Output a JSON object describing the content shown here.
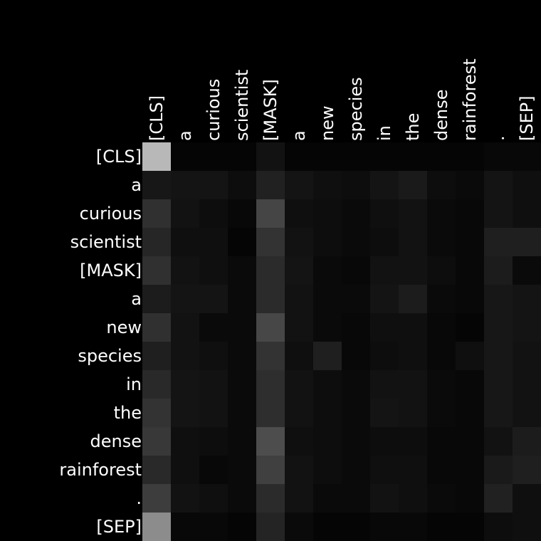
{
  "chart_data": {
    "type": "heatmap",
    "colormap": "grayscale",
    "background": "#000000",
    "title": "",
    "xlabel": "",
    "ylabel": "",
    "x_tokens": [
      "[CLS]",
      "a",
      "curious",
      "scientist",
      "[MASK]",
      "a",
      "new",
      "species",
      "in",
      "the",
      "dense",
      "rainforest",
      ".",
      "[SEP]"
    ],
    "y_tokens": [
      "[CLS]",
      "a",
      "curious",
      "scientist",
      "[MASK]",
      "a",
      "new",
      "species",
      "in",
      "the",
      "dense",
      "rainforest",
      ".",
      "[SEP]"
    ],
    "grid": false,
    "values": [
      [
        0.72,
        0.02,
        0.02,
        0.02,
        0.07,
        0.02,
        0.02,
        0.02,
        0.02,
        0.02,
        0.02,
        0.02,
        0.03,
        0.03
      ],
      [
        0.09,
        0.08,
        0.08,
        0.05,
        0.13,
        0.08,
        0.06,
        0.05,
        0.08,
        0.1,
        0.05,
        0.04,
        0.08,
        0.06
      ],
      [
        0.19,
        0.07,
        0.05,
        0.03,
        0.27,
        0.06,
        0.05,
        0.04,
        0.06,
        0.07,
        0.04,
        0.03,
        0.08,
        0.06
      ],
      [
        0.15,
        0.06,
        0.06,
        0.02,
        0.2,
        0.07,
        0.05,
        0.04,
        0.05,
        0.07,
        0.04,
        0.03,
        0.12,
        0.12
      ],
      [
        0.19,
        0.07,
        0.06,
        0.04,
        0.17,
        0.08,
        0.04,
        0.03,
        0.07,
        0.07,
        0.05,
        0.03,
        0.11,
        0.04
      ],
      [
        0.11,
        0.08,
        0.08,
        0.04,
        0.17,
        0.07,
        0.04,
        0.04,
        0.08,
        0.11,
        0.04,
        0.03,
        0.09,
        0.08
      ],
      [
        0.19,
        0.07,
        0.04,
        0.04,
        0.28,
        0.07,
        0.04,
        0.03,
        0.06,
        0.06,
        0.03,
        0.02,
        0.09,
        0.08
      ],
      [
        0.12,
        0.07,
        0.06,
        0.04,
        0.2,
        0.06,
        0.12,
        0.03,
        0.05,
        0.06,
        0.03,
        0.06,
        0.09,
        0.07
      ],
      [
        0.16,
        0.08,
        0.07,
        0.04,
        0.18,
        0.07,
        0.05,
        0.04,
        0.07,
        0.07,
        0.04,
        0.03,
        0.09,
        0.07
      ],
      [
        0.2,
        0.08,
        0.07,
        0.04,
        0.18,
        0.07,
        0.05,
        0.04,
        0.08,
        0.07,
        0.04,
        0.03,
        0.09,
        0.07
      ],
      [
        0.22,
        0.06,
        0.05,
        0.04,
        0.3,
        0.06,
        0.05,
        0.04,
        0.05,
        0.05,
        0.03,
        0.03,
        0.07,
        0.11
      ],
      [
        0.16,
        0.06,
        0.03,
        0.04,
        0.25,
        0.07,
        0.05,
        0.04,
        0.06,
        0.06,
        0.03,
        0.03,
        0.1,
        0.12
      ],
      [
        0.24,
        0.07,
        0.06,
        0.04,
        0.17,
        0.07,
        0.04,
        0.04,
        0.07,
        0.06,
        0.04,
        0.03,
        0.13,
        0.06
      ],
      [
        0.55,
        0.03,
        0.03,
        0.02,
        0.14,
        0.04,
        0.02,
        0.02,
        0.03,
        0.03,
        0.02,
        0.02,
        0.05,
        0.06
      ]
    ]
  }
}
